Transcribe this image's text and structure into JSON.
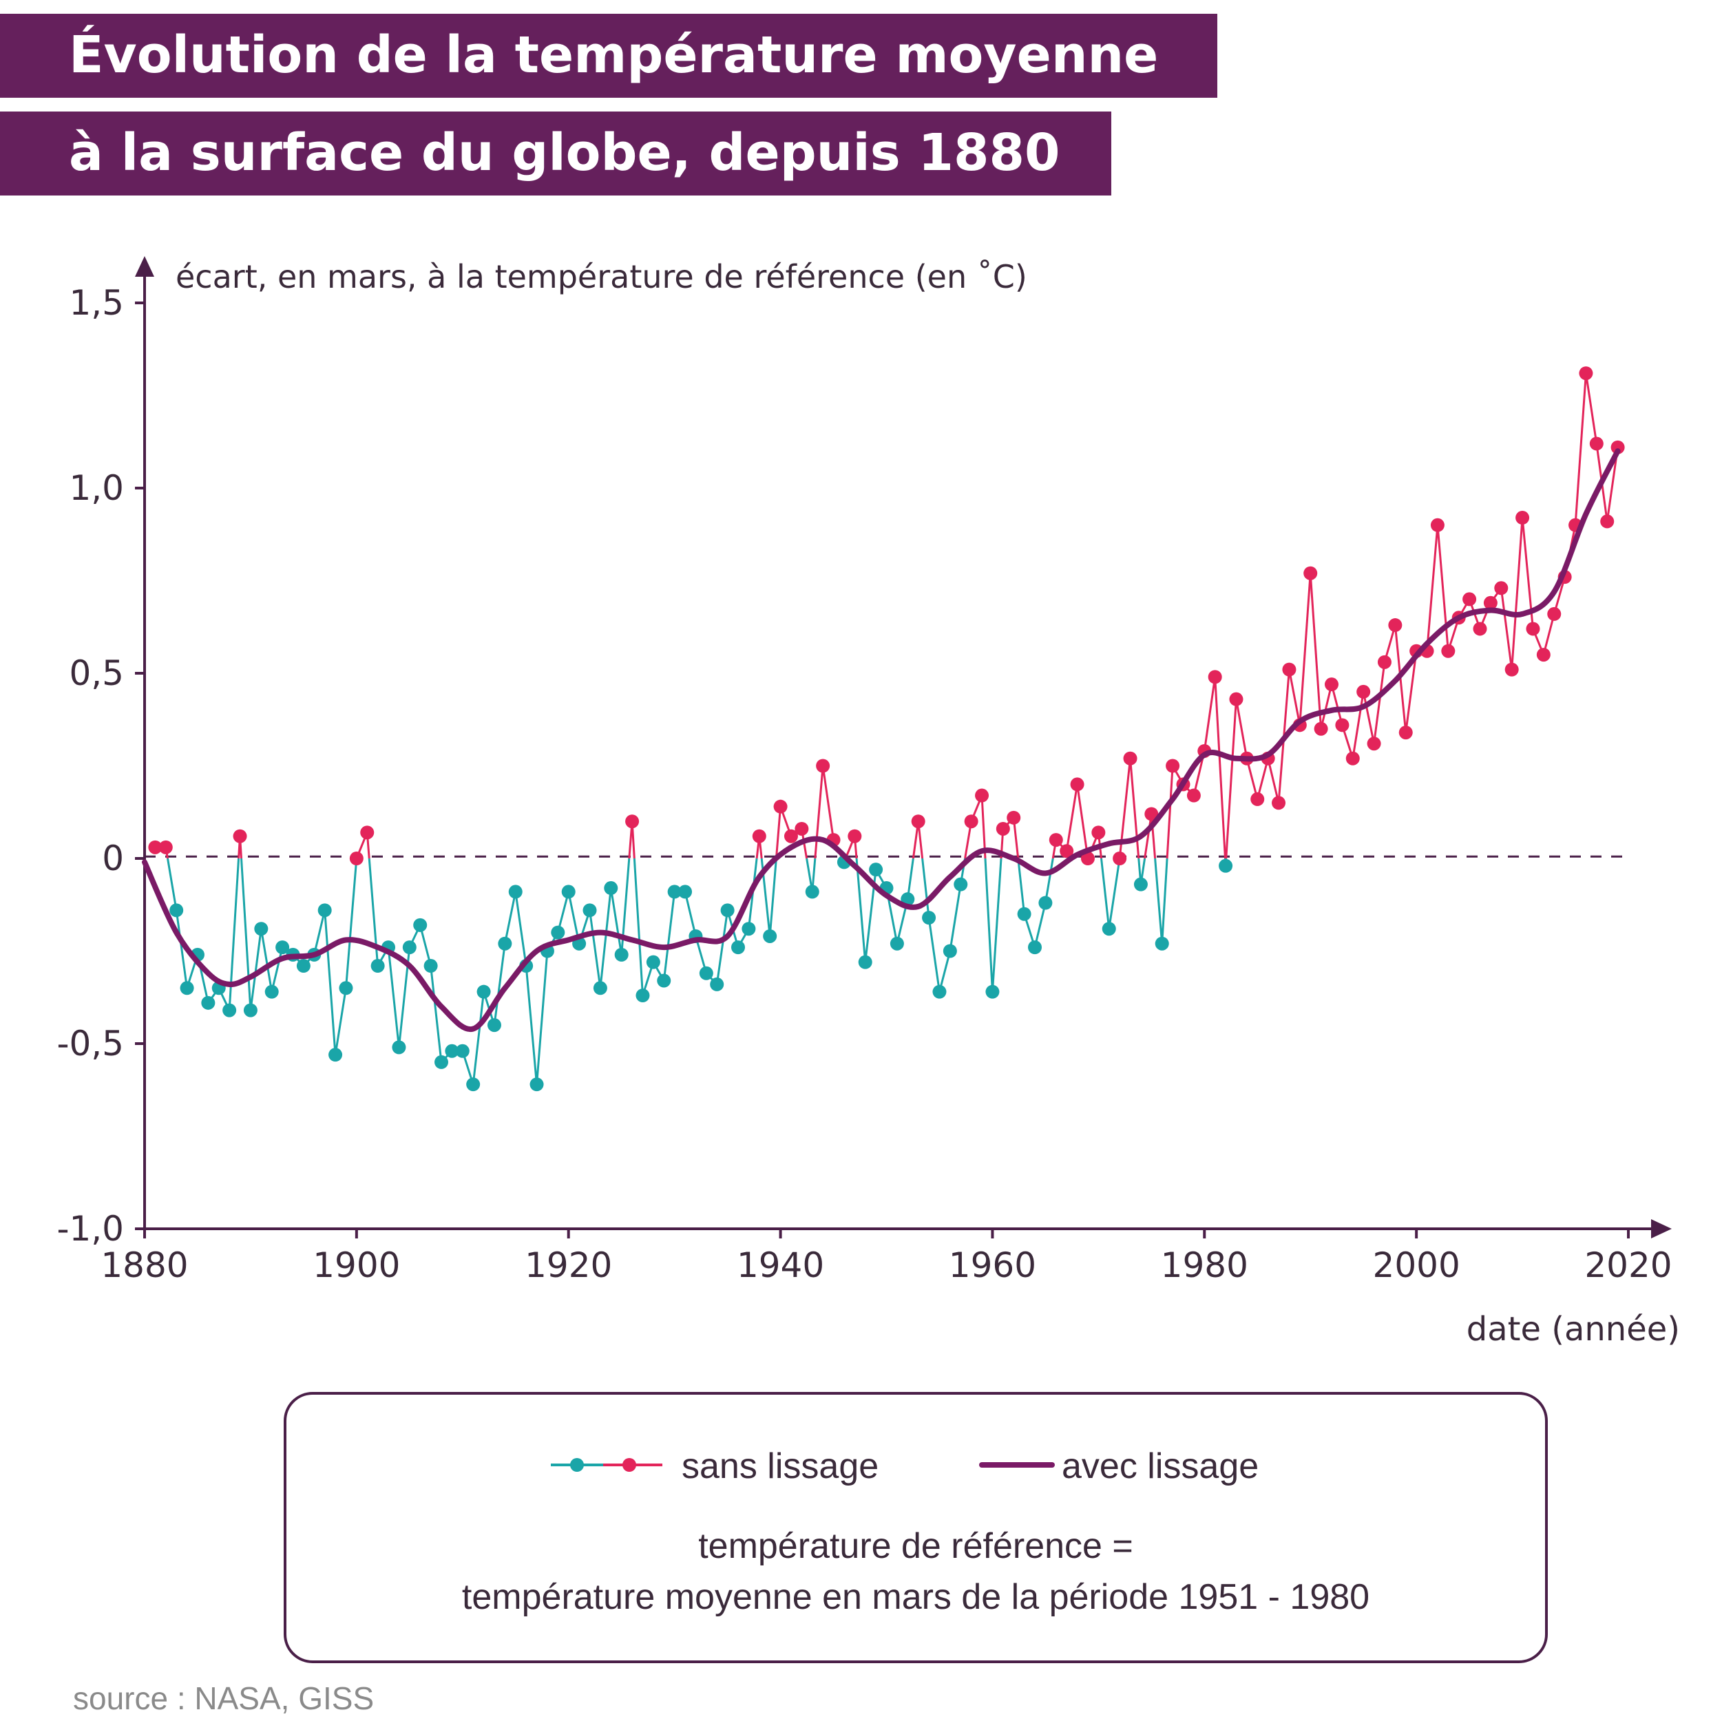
{
  "title": {
    "line1": "Évolution de la température moyenne",
    "line2": "à la surface du globe, depuis 1880"
  },
  "colors": {
    "title_band": "#65205c",
    "below_reference": "#1aa5a8",
    "above_reference": "#e3245a",
    "smoothed": "#7a1a66",
    "axis": "#4a1f48"
  },
  "chart_data": {
    "type": "line",
    "ylabel": "écart, en mars, à la température de référence (en ˚C)",
    "xlabel": "date (année)",
    "xlim": [
      1880,
      2020
    ],
    "ylim": [
      -1.0,
      1.5
    ],
    "xticks": [
      "1880",
      "1900",
      "1920",
      "1940",
      "1960",
      "1980",
      "2000",
      "2020"
    ],
    "yticks": [
      "1,5",
      "1,0",
      "0,5",
      "0",
      "-0,5",
      "-1,0"
    ],
    "ytick_values": [
      1.5,
      1.0,
      0.5,
      0,
      -0.5,
      -1.0
    ],
    "reference_line": 0,
    "grid": false,
    "series": [
      {
        "name": "sans lissage",
        "x_start": 1881,
        "values": [
          0.03,
          0.03,
          -0.14,
          -0.35,
          -0.26,
          -0.39,
          -0.35,
          -0.41,
          0.06,
          -0.41,
          -0.19,
          -0.36,
          -0.24,
          -0.26,
          -0.29,
          -0.26,
          -0.14,
          -0.53,
          -0.35,
          0.0,
          0.07,
          -0.29,
          -0.24,
          -0.51,
          -0.24,
          -0.18,
          -0.29,
          -0.55,
          -0.52,
          -0.52,
          -0.61,
          -0.36,
          -0.45,
          -0.23,
          -0.09,
          -0.29,
          -0.61,
          -0.25,
          -0.2,
          -0.09,
          -0.23,
          -0.14,
          -0.35,
          -0.08,
          -0.26,
          0.1,
          -0.37,
          -0.28,
          -0.33,
          -0.09,
          -0.09,
          -0.21,
          -0.31,
          -0.34,
          -0.14,
          -0.24,
          -0.19,
          0.06,
          -0.21,
          0.14,
          0.06,
          0.08,
          -0.09,
          0.25,
          0.05,
          -0.01,
          0.06,
          -0.28,
          -0.03,
          -0.08,
          -0.23,
          -0.11,
          0.1,
          -0.16,
          -0.36,
          -0.25,
          -0.07,
          0.1,
          0.17,
          -0.36,
          0.08,
          0.11,
          -0.15,
          -0.24,
          -0.12,
          0.05,
          0.02,
          0.2,
          0.0,
          0.07,
          -0.19,
          0.0,
          0.27,
          -0.07,
          0.12,
          -0.23,
          0.25,
          0.2,
          0.17,
          0.29,
          0.49,
          -0.02,
          0.43,
          0.27,
          0.16,
          0.27,
          0.15,
          0.51,
          0.36,
          0.77,
          0.35,
          0.47,
          0.36,
          0.27,
          0.45,
          0.31,
          0.53,
          0.63,
          0.34,
          0.56,
          0.56,
          0.9,
          0.56,
          0.65,
          0.7,
          0.62,
          0.69,
          0.73,
          0.51,
          0.92,
          0.62,
          0.55,
          0.66,
          0.76,
          0.9,
          1.31,
          1.12,
          0.91,
          1.11
        ]
      },
      {
        "name": "avec lissage",
        "x": [
          1880,
          1883,
          1886,
          1888,
          1890,
          1893,
          1896,
          1899,
          1902,
          1905,
          1908,
          1911,
          1914,
          1917,
          1920,
          1923,
          1926,
          1929,
          1932,
          1935,
          1938,
          1941,
          1944,
          1947,
          1950,
          1953,
          1956,
          1959,
          1962,
          1965,
          1968,
          1971,
          1974,
          1977,
          1980,
          1983,
          1986,
          1989,
          1992,
          1995,
          1998,
          2001,
          2004,
          2007,
          2010,
          2013,
          2016,
          2019
        ],
        "values": [
          -0.01,
          -0.2,
          -0.31,
          -0.34,
          -0.32,
          -0.27,
          -0.26,
          -0.22,
          -0.24,
          -0.29,
          -0.4,
          -0.46,
          -0.35,
          -0.25,
          -0.22,
          -0.2,
          -0.22,
          -0.24,
          -0.22,
          -0.21,
          -0.05,
          0.03,
          0.05,
          -0.02,
          -0.1,
          -0.13,
          -0.05,
          0.02,
          0.0,
          -0.04,
          0.01,
          0.04,
          0.06,
          0.16,
          0.28,
          0.27,
          0.28,
          0.37,
          0.4,
          0.41,
          0.48,
          0.58,
          0.65,
          0.67,
          0.66,
          0.72,
          0.93,
          1.1
        ]
      }
    ]
  },
  "legend": {
    "raw_label": "sans lissage",
    "smoothed_label": "avec lissage",
    "reference_line1": "température de référence =",
    "reference_line2": "température moyenne en mars de la période 1951 - 1980"
  },
  "source": "source : NASA, GISS"
}
